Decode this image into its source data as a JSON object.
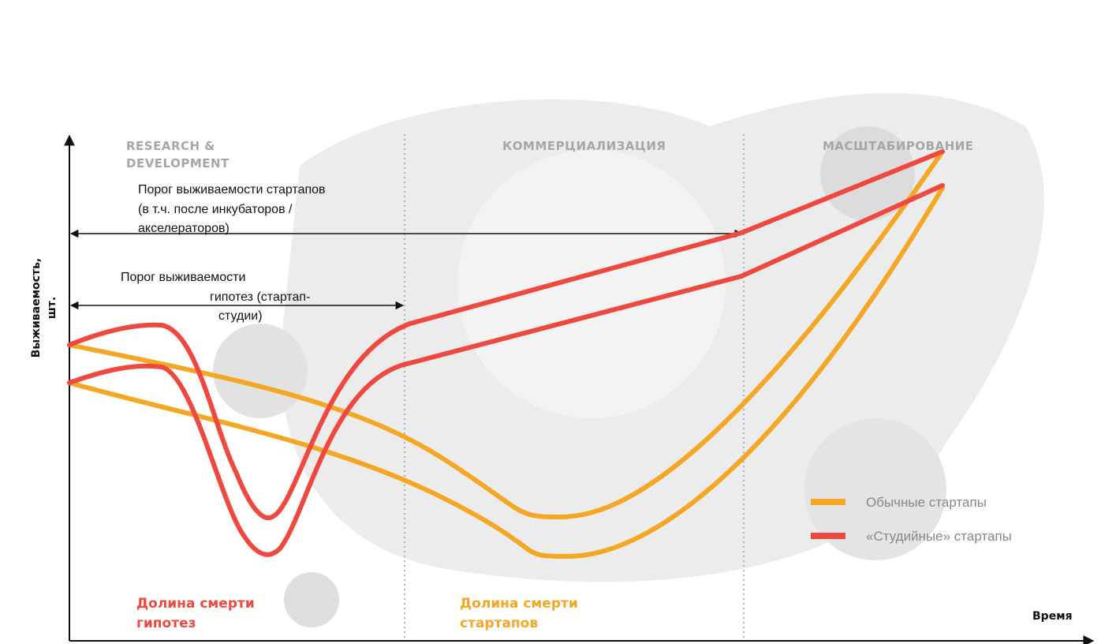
{
  "axes": {
    "y_label": [
      "Выживаемость,",
      "шт."
    ],
    "x_label": "Время"
  },
  "phases": [
    [
      "RESEARCH &",
      "DEVELOPMENT"
    ],
    [
      "КОММЕРЦИАЛИЗАЦИЯ"
    ],
    [
      "МАСШТАБИРОВАНИЕ"
    ]
  ],
  "thresholds": [
    [
      "Порог выживаемости стартапов",
      "(в т.ч. после инкубаторов /",
      "акселераторов)"
    ],
    [
      "Порог выживаемости",
      "гипотез (стартап-",
      "студии)"
    ]
  ],
  "valleys": [
    [
      "Долина смерти",
      "гипотез"
    ],
    [
      "Долина смерти",
      "стартапов"
    ]
  ],
  "legend": [
    "Обычные стартапы",
    "«Студийные» стартапы"
  ]
}
